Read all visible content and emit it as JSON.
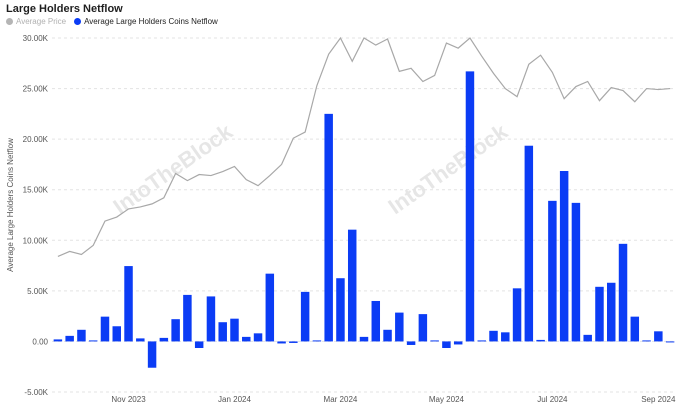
{
  "title": "Large Holders Netflow",
  "legend": [
    {
      "label": "Average Price",
      "color": "#b5b5b5"
    },
    {
      "label": "Average Large Holders Coins Netflow",
      "color": "#0b3cf5"
    }
  ],
  "watermark": "IntoTheBlock",
  "colors": {
    "bars": "#0b3cf5",
    "line": "#a8a8a8",
    "grid": "#e3e3e3"
  },
  "chart_data": {
    "type": "bar",
    "title": "Large Holders Netflow",
    "ylabel": "Average Large Holders Coins Netflow",
    "ylim": [
      -5000,
      30000
    ],
    "yticks": [
      "-5.00K",
      "0.00",
      "5.00K",
      "10.00K",
      "15.00K",
      "20.00K",
      "25.00K",
      "30.00K"
    ],
    "ytick_values": [
      -5000,
      0,
      5000,
      10000,
      15000,
      20000,
      25000,
      30000
    ],
    "xticks": [
      {
        "label": "Nov 2023",
        "index": 6
      },
      {
        "label": "Jan 2024",
        "index": 15
      },
      {
        "label": "Mar 2024",
        "index": 24
      },
      {
        "label": "May 2024",
        "index": 33
      },
      {
        "label": "Jul 2024",
        "index": 42
      },
      {
        "label": "Sep 2024",
        "index": 51
      }
    ],
    "x_count": 53,
    "series": [
      {
        "name": "Average Large Holders Coins Netflow",
        "kind": "bar",
        "values": [
          200,
          550,
          1150,
          100,
          2450,
          1500,
          7450,
          300,
          -2600,
          350,
          2200,
          4600,
          -650,
          4450,
          1900,
          2250,
          450,
          800,
          6700,
          -200,
          -150,
          4900,
          100,
          22500,
          6250,
          11050,
          450,
          4000,
          1150,
          2850,
          -350,
          2700,
          100,
          -650,
          -300,
          26700,
          100,
          1050,
          900,
          5250,
          19350,
          150,
          13900,
          16850,
          13700,
          650,
          5400,
          5800,
          9650,
          2450,
          100,
          1000,
          0
        ]
      },
      {
        "name": "Average Price",
        "kind": "line",
        "scale_ylim": [
          -5000,
          30000
        ],
        "values": [
          8400,
          8900,
          8600,
          9500,
          11900,
          12300,
          13100,
          13300,
          13600,
          14200,
          16600,
          15900,
          16500,
          16400,
          16800,
          17300,
          16000,
          15400,
          16400,
          17500,
          20100,
          20700,
          25300,
          28400,
          30000,
          27700,
          30000,
          29300,
          29900,
          26700,
          27000,
          25700,
          26300,
          29500,
          29000,
          30000,
          28200,
          26500,
          25000,
          24200,
          27400,
          28300,
          26600,
          24000,
          25200,
          25700,
          23800,
          25100,
          24800,
          23700,
          25000,
          24900,
          25000
        ]
      }
    ],
    "grid": true,
    "legend_position": "top-left"
  }
}
